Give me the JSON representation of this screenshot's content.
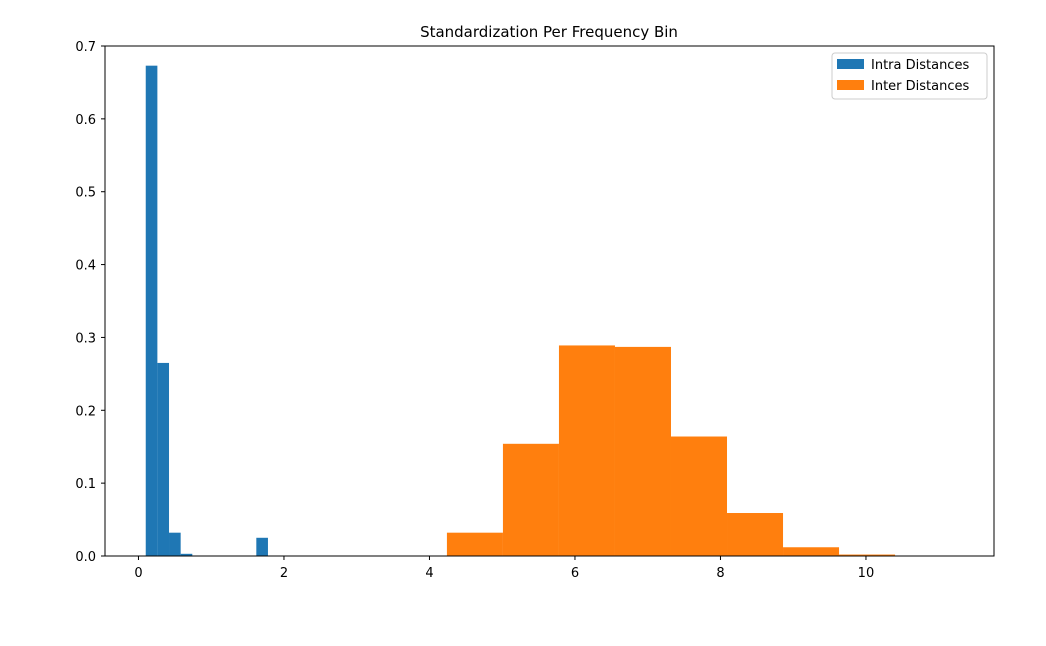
{
  "chart_data": {
    "type": "bar",
    "title": "Standardization Per Frequency Bin",
    "xlabel": "",
    "ylabel": "",
    "xlim": [
      -0.46,
      11.76
    ],
    "ylim": [
      0,
      0.7
    ],
    "x_ticks": [
      "0",
      "2",
      "4",
      "6",
      "8",
      "10"
    ],
    "x_tick_values": [
      0,
      2,
      4,
      6,
      8,
      10
    ],
    "y_ticks": [
      "0.0",
      "0.1",
      "0.2",
      "0.3",
      "0.4",
      "0.5",
      "0.6",
      "0.7"
    ],
    "y_tick_values": [
      0.0,
      0.1,
      0.2,
      0.3,
      0.4,
      0.5,
      0.6,
      0.7
    ],
    "grid": false,
    "legend_position": "top-right",
    "series": [
      {
        "name": "Intra Distances",
        "color": "#1f77b4",
        "bins": [
          {
            "x0": 0.1,
            "x1": 0.26,
            "value": 0.673
          },
          {
            "x0": 0.26,
            "x1": 0.42,
            "value": 0.265
          },
          {
            "x0": 0.42,
            "x1": 0.58,
            "value": 0.032
          },
          {
            "x0": 0.58,
            "x1": 0.74,
            "value": 0.003
          },
          {
            "x0": 1.62,
            "x1": 1.78,
            "value": 0.025
          }
        ]
      },
      {
        "name": "Inter Distances",
        "color": "#ff7f0e",
        "bins": [
          {
            "x0": 4.24,
            "x1": 5.01,
            "value": 0.032
          },
          {
            "x0": 5.01,
            "x1": 5.78,
            "value": 0.154
          },
          {
            "x0": 5.78,
            "x1": 6.55,
            "value": 0.289
          },
          {
            "x0": 6.55,
            "x1": 7.32,
            "value": 0.287
          },
          {
            "x0": 7.32,
            "x1": 8.09,
            "value": 0.164
          },
          {
            "x0": 8.09,
            "x1": 8.86,
            "value": 0.059
          },
          {
            "x0": 8.86,
            "x1": 9.63,
            "value": 0.012
          },
          {
            "x0": 9.63,
            "x1": 10.4,
            "value": 0.002
          }
        ]
      }
    ]
  }
}
